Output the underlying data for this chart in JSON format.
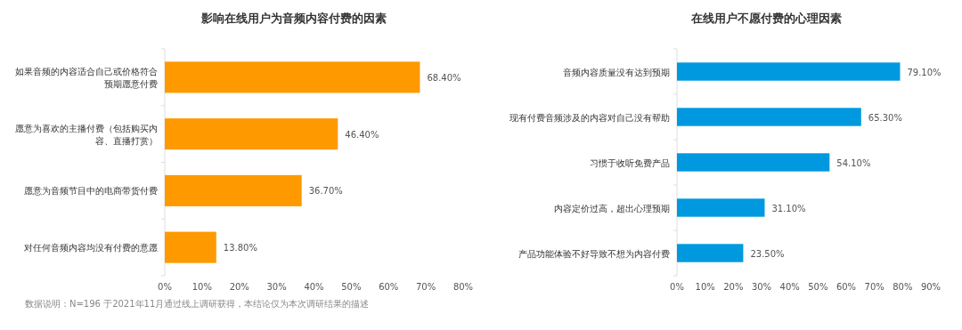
{
  "chart_data": [
    {
      "type": "bar",
      "orientation": "horizontal",
      "title": "影响在线用户为音频内容付费的因素",
      "categories": [
        "如果音频的内容适合自己或价格符合预期愿意付费",
        "愿意为喜欢的主播付费（包括购买内容、直播打赏）",
        "愿意为音频节目中的电商带货付费",
        "对任何音频内容均没有付费的意愿"
      ],
      "values": [
        68.4,
        46.4,
        36.7,
        13.8
      ],
      "value_labels": [
        "68.40%",
        "46.40%",
        "36.70%",
        "13.80%"
      ],
      "color": "#ff9900",
      "xlim": [
        0,
        80
      ],
      "xticks": [
        {
          "value": 0,
          "label": "0%"
        },
        {
          "value": 10,
          "label": "10%"
        },
        {
          "value": 20,
          "label": "20%"
        },
        {
          "value": 30,
          "label": "30%"
        },
        {
          "value": 40,
          "label": "40%"
        },
        {
          "value": 50,
          "label": "50%"
        },
        {
          "value": 60,
          "label": "60%"
        },
        {
          "value": 70,
          "label": "70%"
        },
        {
          "value": 80,
          "label": "80%"
        }
      ],
      "annotations": [
        "数据说明：N=196 于2021年11月通过线上调研获得，本结论仅为本次调研结果的描述"
      ]
    },
    {
      "type": "bar",
      "orientation": "horizontal",
      "title": "在线用户不愿付费的心理因素",
      "categories": [
        "音频内容质量没有达到预期",
        "现有付费音频涉及的内容对自己没有帮助",
        "习惯于收听免费产品",
        "内容定价过高，超出心理预期",
        "产品功能体验不好导致不想为内容付费"
      ],
      "values": [
        79.1,
        65.3,
        54.1,
        31.1,
        23.5
      ],
      "value_labels": [
        "79.10%",
        "65.30%",
        "54.10%",
        "31.10%",
        "23.50%"
      ],
      "color": "#0099e0",
      "xlim": [
        0,
        90
      ],
      "xticks": [
        {
          "value": 0,
          "label": "0%"
        },
        {
          "value": 10,
          "label": "10%"
        },
        {
          "value": 20,
          "label": "20%"
        },
        {
          "value": 30,
          "label": "30%"
        },
        {
          "value": 40,
          "label": "40%"
        },
        {
          "value": 50,
          "label": "50%"
        },
        {
          "value": 60,
          "label": "60%"
        },
        {
          "value": 70,
          "label": "70%"
        },
        {
          "value": 80,
          "label": "80%"
        },
        {
          "value": 90,
          "label": "90%"
        }
      ]
    }
  ]
}
